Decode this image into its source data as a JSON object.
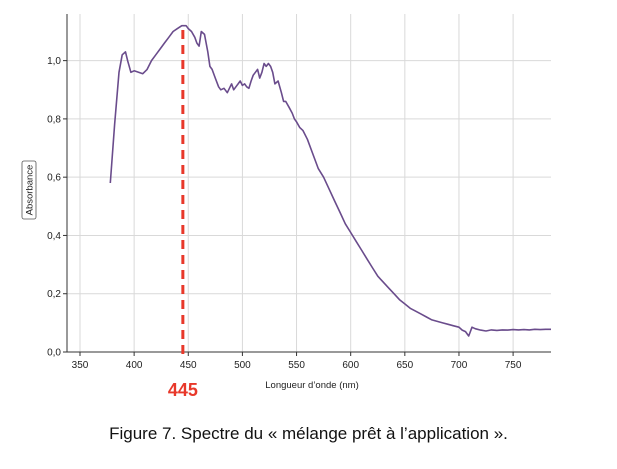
{
  "figure": {
    "caption": "Figure 7. Spectre du « mélange prêt à l’application »."
  },
  "chart_data": {
    "type": "line",
    "xlabel": "Longueur d’onde (nm)",
    "ylabel": "Absorbance",
    "xlim": [
      338,
      785
    ],
    "ylim": [
      0,
      1.16
    ],
    "xticks": [
      350,
      400,
      450,
      500,
      550,
      600,
      650,
      700,
      750
    ],
    "yticks": [
      0,
      0.2,
      0.4,
      0.6,
      0.8,
      1.0
    ],
    "xtick_labels": [
      "350",
      "400",
      "450",
      "500",
      "550",
      "600",
      "650",
      "700",
      "750"
    ],
    "ytick_labels": [
      "0,0",
      "0,2",
      "0,4",
      "0,6",
      "0,8",
      "1,0"
    ],
    "grid": true,
    "series": [
      {
        "color": "#6a4c8c",
        "x": [
          378,
          382,
          386,
          389,
          392,
          394,
          397,
          400,
          404,
          408,
          412,
          416,
          420,
          424,
          428,
          432,
          436,
          440,
          444,
          448,
          450,
          453,
          456,
          458,
          460,
          462,
          465,
          468,
          470,
          472,
          475,
          478,
          480,
          483,
          486,
          488,
          490,
          492,
          494,
          496,
          498,
          500,
          502,
          504,
          506,
          508,
          510,
          512,
          514,
          516,
          518,
          520,
          522,
          524,
          526,
          528,
          530,
          533,
          536,
          538,
          540,
          543,
          546,
          548,
          550,
          553,
          556,
          560,
          565,
          570,
          575,
          580,
          585,
          590,
          595,
          600,
          605,
          610,
          615,
          620,
          625,
          630,
          635,
          640,
          645,
          650,
          655,
          660,
          665,
          670,
          675,
          680,
          685,
          690,
          695,
          700,
          703,
          706,
          708,
          709,
          710,
          712,
          715,
          720,
          725,
          730,
          735,
          740,
          745,
          750,
          755,
          760,
          765,
          770,
          775,
          780,
          785
        ],
        "y": [
          0.58,
          0.78,
          0.96,
          1.02,
          1.03,
          1.0,
          0.96,
          0.965,
          0.96,
          0.955,
          0.97,
          1.0,
          1.02,
          1.04,
          1.06,
          1.08,
          1.1,
          1.11,
          1.12,
          1.12,
          1.11,
          1.1,
          1.08,
          1.06,
          1.05,
          1.1,
          1.09,
          1.03,
          0.98,
          0.97,
          0.94,
          0.91,
          0.9,
          0.905,
          0.89,
          0.905,
          0.92,
          0.9,
          0.91,
          0.92,
          0.93,
          0.915,
          0.92,
          0.91,
          0.905,
          0.93,
          0.95,
          0.96,
          0.97,
          0.94,
          0.96,
          0.99,
          0.98,
          0.99,
          0.98,
          0.96,
          0.92,
          0.93,
          0.89,
          0.86,
          0.86,
          0.84,
          0.82,
          0.8,
          0.79,
          0.77,
          0.76,
          0.73,
          0.68,
          0.63,
          0.6,
          0.56,
          0.52,
          0.48,
          0.44,
          0.41,
          0.38,
          0.35,
          0.32,
          0.29,
          0.26,
          0.24,
          0.22,
          0.2,
          0.18,
          0.165,
          0.15,
          0.14,
          0.13,
          0.12,
          0.11,
          0.105,
          0.1,
          0.095,
          0.09,
          0.085,
          0.075,
          0.07,
          0.06,
          0.055,
          0.065,
          0.085,
          0.08,
          0.075,
          0.072,
          0.076,
          0.074,
          0.076,
          0.075,
          0.077,
          0.076,
          0.077,
          0.076,
          0.078,
          0.077,
          0.078,
          0.078
        ]
      }
    ],
    "annotations": [
      {
        "x": 445,
        "label": "445",
        "color": "#e8382a",
        "style": "dashed-vertical"
      }
    ]
  }
}
